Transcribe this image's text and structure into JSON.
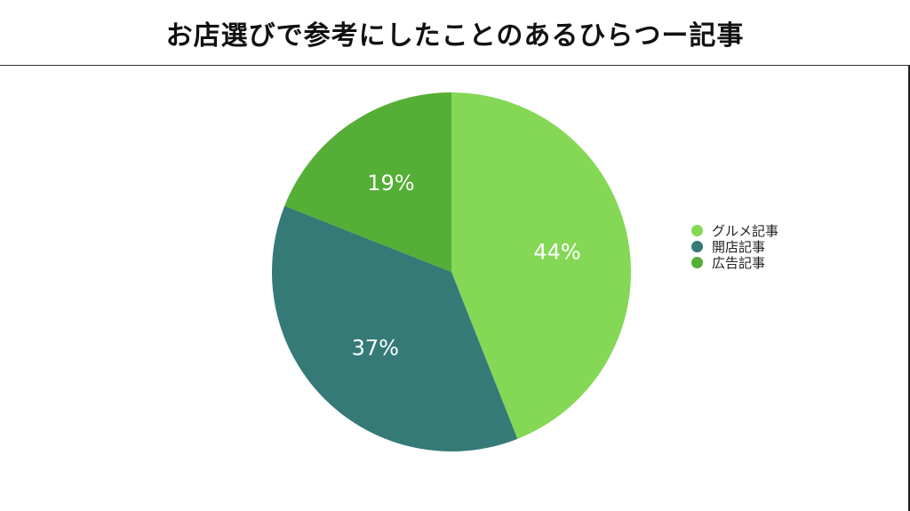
{
  "chart_data": {
    "type": "pie",
    "title": "お店選びで参考にしたことのあるひらつー記事",
    "categories": [
      "グルメ記事",
      "開店記事",
      "広告記事"
    ],
    "values": [
      44,
      37,
      19
    ],
    "labels": [
      "44%",
      "37%",
      "19%"
    ],
    "colors": [
      "#84d856",
      "#357a77",
      "#55ae35"
    ],
    "legend_position": "right"
  }
}
